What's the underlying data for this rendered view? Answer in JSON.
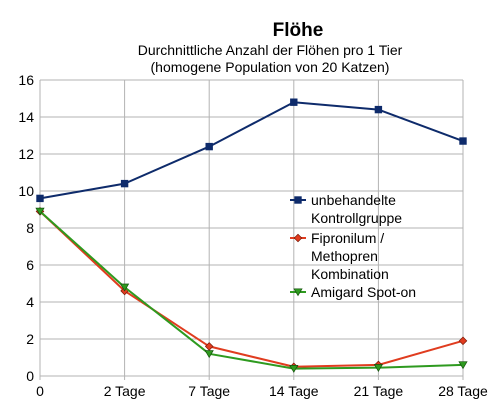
{
  "chart_data": {
    "type": "line",
    "title": "Flöhe",
    "subtitle_lines": [
      "Durchnittliche Anzahl der Flöhen pro 1 Tier",
      "(homogene Population von 20 Katzen)"
    ],
    "categories": [
      "0",
      "2 Tage",
      "7 Tage",
      "14 Tage",
      "21 Tage",
      "28 Tage"
    ],
    "ylim": [
      0,
      16
    ],
    "yticks": [
      0,
      2,
      4,
      6,
      8,
      10,
      12,
      14,
      16
    ],
    "grid": true,
    "legend_position": "right",
    "series": [
      {
        "name_lines": [
          "unbehandelte",
          "Kontrollgruppe"
        ],
        "color": "#0e2b6b",
        "marker": "square",
        "values": [
          9.6,
          10.4,
          12.4,
          14.8,
          14.4,
          12.7
        ]
      },
      {
        "name_lines": [
          "Fipronilum /",
          "Methopren",
          "Kombination"
        ],
        "color": "#e03c1f",
        "marker": "diamond",
        "values": [
          8.9,
          4.6,
          1.6,
          0.5,
          0.6,
          1.9
        ]
      },
      {
        "name_lines": [
          "Amigard Spot-on"
        ],
        "color": "#2e9a1f",
        "marker": "triangle-down",
        "values": [
          8.9,
          4.8,
          1.2,
          0.4,
          0.45,
          0.6
        ]
      }
    ]
  }
}
